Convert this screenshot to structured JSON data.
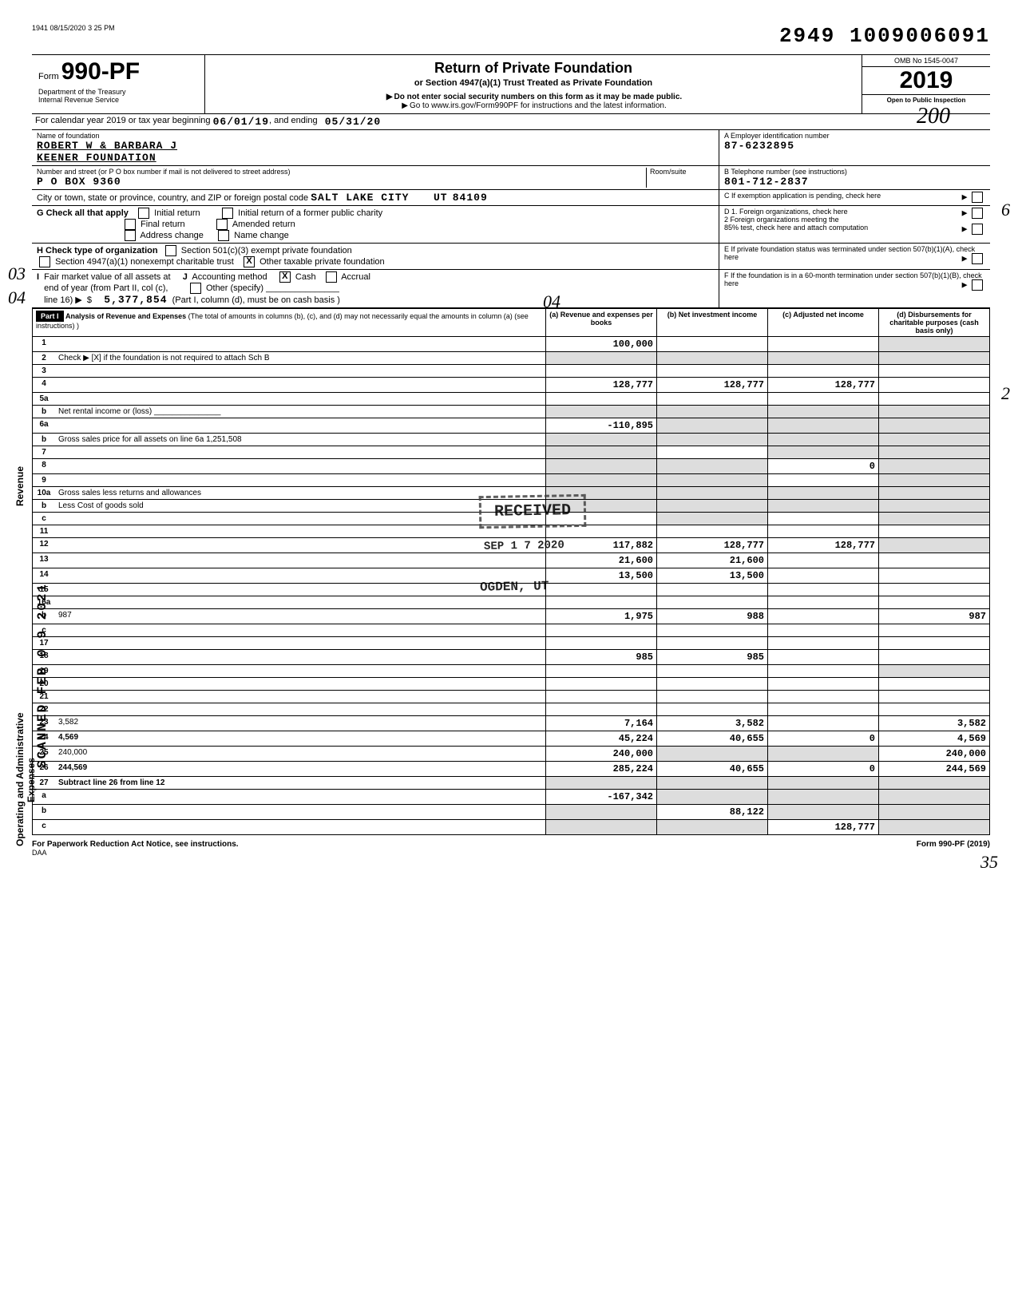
{
  "meta": {
    "timestamp_line": "1941 08/15/2020 3 25 PM",
    "dln": "2949 1009006091"
  },
  "header": {
    "form_prefix": "Form",
    "form_number": "990-PF",
    "dept_line1": "Department of the Treasury",
    "dept_line2": "Internal Revenue Service",
    "title": "Return of Private Foundation",
    "subtitle": "or Section 4947(a)(1) Trust Treated as Private Foundation",
    "warn": "Do not enter social security numbers on this form as it may be made public.",
    "goto": "Go to www.irs.gov/Form990PF for instructions and the latest information.",
    "omb": "OMB No 1545-0047",
    "year": "2019",
    "open": "Open to Public Inspection"
  },
  "cal": {
    "label": "For calendar year 2019 or tax year beginning",
    "begin": "06/01/19",
    "mid": ", and ending",
    "end": "05/31/20"
  },
  "entity": {
    "name_label": "Name of foundation",
    "name1": "ROBERT W & BARBARA J",
    "name2": "KEENER FOUNDATION",
    "ein_label": "A   Employer identification number",
    "ein": "87-6232895",
    "addr_label": "Number and street (or P O  box number if mail is not delivered to street address)",
    "room_label": "Room/suite",
    "addr": "P O BOX 9360",
    "tel_label": "B   Telephone number (see instructions)",
    "tel": "801-712-2837",
    "city_label": "City or town, state or province, country, and ZIP or foreign postal code",
    "city": "SALT LAKE CITY",
    "state": "UT",
    "zip": "84109",
    "c_label": "C   If exemption application is pending, check here"
  },
  "g": {
    "label": "G   Check all that apply",
    "o1": "Initial return",
    "o2": "Initial return of a former public charity",
    "o3": "Final return",
    "o4": "Amended return",
    "o5": "Address change",
    "o6": "Name change",
    "d1": "D   1.  Foreign organizations, check here",
    "d2": "2   Foreign organizations meeting the",
    "d2b": "85% test, check here and attach computation"
  },
  "h": {
    "label": "H   Check type of organization",
    "o1": "Section 501(c)(3) exempt private foundation",
    "o2": "Section 4947(a)(1) nonexempt charitable trust",
    "o3": "Other taxable private foundation",
    "e": "E   If private foundation status was terminated under section 507(b)(1)(A), check here"
  },
  "i": {
    "label": "I   Fair market value of all assets at end of year (from Part II, col (c), line 16)",
    "j_label": "J   Accounting method",
    "cash": "Cash",
    "accrual": "Accrual",
    "other": "Other (specify)",
    "amount": "5,377,854",
    "note": "(Part I, column (d), must be on cash basis )",
    "f": "F   If the foundation is in a 60-month termination under section 507(b)(1)(B), check here"
  },
  "part1": {
    "badge": "Part I",
    "title": "Analysis of Revenue and Expenses",
    "title_note": "(The total of amounts in columns (b), (c), and (d) may not necessarily equal the amounts in column (a) (see instructions) )",
    "col_a": "(a) Revenue and expenses per books",
    "col_b": "(b) Net investment income",
    "col_c": "(c) Adjusted net income",
    "col_d": "(d) Disbursements for charitable purposes (cash basis only)"
  },
  "side_labels": {
    "revenue": "Revenue",
    "opex": "Operating and Administrative Expenses",
    "stamp_scan": "SCANNED FEB 0 9 2021"
  },
  "rows": [
    {
      "n": "1",
      "d": "",
      "a": "100,000",
      "b": "",
      "c": "",
      "dgrey": true
    },
    {
      "n": "2",
      "d": "Check ▶  [X]  if the foundation is not required to attach Sch  B",
      "noval": true
    },
    {
      "n": "3",
      "d": "",
      "a": "",
      "b": "",
      "c": ""
    },
    {
      "n": "4",
      "d": "",
      "a": "128,777",
      "b": "128,777",
      "c": "128,777"
    },
    {
      "n": "5a",
      "d": "",
      "a": "",
      "b": "",
      "c": ""
    },
    {
      "n": "b",
      "d": "Net rental income or (loss)  _______________",
      "noval": true
    },
    {
      "n": "6a",
      "d": "",
      "a": "-110,895",
      "b": "",
      "c": "",
      "dgrey": true,
      "bgrey": true,
      "cgrey": true
    },
    {
      "n": "b",
      "d": "Gross sales price for all assets on line 6a             1,251,508",
      "noval": true
    },
    {
      "n": "7",
      "d": "",
      "a": "",
      "b": "",
      "c": "",
      "agrey": true,
      "cgrey": true,
      "dgrey": true
    },
    {
      "n": "8",
      "d": "",
      "a": "",
      "b": "",
      "c": "0",
      "agrey": true,
      "bgrey": true,
      "dgrey": true
    },
    {
      "n": "9",
      "d": "",
      "a": "",
      "b": "",
      "c": "",
      "agrey": true,
      "bgrey": true,
      "dgrey": true
    },
    {
      "n": "10a",
      "d": "Gross sales less returns and allowances",
      "noval": true
    },
    {
      "n": "b",
      "d": "Less  Cost of goods sold",
      "noval": true
    },
    {
      "n": "c",
      "d": "",
      "a": "",
      "b": "",
      "c": "",
      "bgrey": true,
      "dgrey": true
    },
    {
      "n": "11",
      "d": "",
      "a": "",
      "b": "",
      "c": ""
    },
    {
      "n": "12",
      "d": "",
      "a": "117,882",
      "b": "128,777",
      "c": "128,777",
      "bold": true,
      "dgrey": true
    },
    {
      "n": "13",
      "d": "",
      "a": "21,600",
      "b": "21,600",
      "c": ""
    },
    {
      "n": "14",
      "d": "",
      "a": "13,500",
      "b": "13,500",
      "c": ""
    },
    {
      "n": "15",
      "d": "",
      "a": "",
      "b": "",
      "c": ""
    },
    {
      "n": "16a",
      "d": "",
      "a": "",
      "b": "",
      "c": ""
    },
    {
      "n": "b",
      "d": "987",
      "a": "1,975",
      "b": "988",
      "c": ""
    },
    {
      "n": "c",
      "d": "",
      "a": "",
      "b": "",
      "c": ""
    },
    {
      "n": "17",
      "d": "",
      "a": "",
      "b": "",
      "c": ""
    },
    {
      "n": "18",
      "d": "",
      "a": "985",
      "b": "985",
      "c": ""
    },
    {
      "n": "19",
      "d": "",
      "a": "",
      "b": "",
      "c": "",
      "dgrey": true
    },
    {
      "n": "20",
      "d": "",
      "a": "",
      "b": "",
      "c": ""
    },
    {
      "n": "21",
      "d": "",
      "a": "",
      "b": "",
      "c": ""
    },
    {
      "n": "22",
      "d": "",
      "a": "",
      "b": "",
      "c": ""
    },
    {
      "n": "23",
      "d": "3,582",
      "a": "7,164",
      "b": "3,582",
      "c": ""
    },
    {
      "n": "24",
      "d": "4,569",
      "a": "45,224",
      "b": "40,655",
      "c": "0",
      "bold": true
    },
    {
      "n": "25",
      "d": "240,000",
      "a": "240,000",
      "b": "",
      "c": "",
      "bgrey": true,
      "cgrey": true
    },
    {
      "n": "26",
      "d": "244,569",
      "a": "285,224",
      "b": "40,655",
      "c": "0",
      "bold": true
    },
    {
      "n": "27",
      "d": "Subtract line 26 from line 12",
      "noval": true,
      "bold": true
    },
    {
      "n": "a",
      "d": "",
      "a": "-167,342",
      "b": "",
      "c": "",
      "bgrey": true,
      "cgrey": true,
      "dgrey": true,
      "bold": true
    },
    {
      "n": "b",
      "d": "",
      "a": "",
      "b": "88,122",
      "c": "",
      "agrey": true,
      "cgrey": true,
      "dgrey": true,
      "bold": true
    },
    {
      "n": "c",
      "d": "",
      "a": "",
      "b": "",
      "c": "128,777",
      "agrey": true,
      "bgrey": true,
      "dgrey": true,
      "bold": true
    }
  ],
  "handwritten": {
    "h03": "03",
    "h04": "04",
    "h200": "200",
    "h04b": "04",
    "h6": "6",
    "h2": "2",
    "h35": "35"
  },
  "received": {
    "l1": "RECEIVED",
    "l2": "SEP 1 7 2020",
    "l3": "OGDEN, UT"
  },
  "footer": {
    "left": "For Paperwork Reduction Act Notice, see instructions.",
    "mid": "DAA",
    "right": "Form 990-PF (2019)"
  }
}
